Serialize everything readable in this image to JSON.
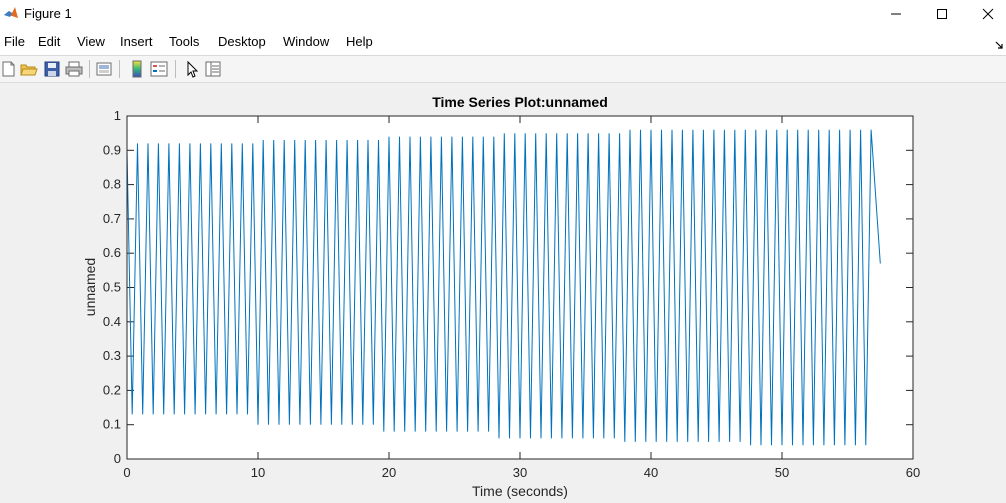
{
  "window": {
    "title": "Figure 1",
    "controls": [
      "minimize",
      "maximize",
      "close"
    ]
  },
  "menu": [
    "File",
    "Edit",
    "View",
    "Insert",
    "Tools",
    "Desktop",
    "Window",
    "Help"
  ],
  "toolbar": {
    "buttons": [
      {
        "icon": "new-figure-icon"
      },
      {
        "icon": "open-folder-icon"
      },
      {
        "icon": "save-icon"
      },
      {
        "icon": "print-icon"
      },
      {
        "icon": "link-plot-icon"
      },
      {
        "icon": "insert-colorbar-icon"
      },
      {
        "icon": "insert-legend-icon"
      },
      {
        "icon": "edit-plot-pointer-icon"
      },
      {
        "icon": "property-inspector-icon"
      }
    ]
  },
  "chart_data": {
    "type": "line",
    "title": "Time Series Plot:unnamed",
    "xlabel": "Time (seconds)",
    "ylabel": "unnamed",
    "xlim": [
      0,
      60
    ],
    "ylim": [
      0,
      1
    ],
    "xticks": [
      "0",
      "10",
      "20",
      "30",
      "40",
      "50",
      "60"
    ],
    "yticks": [
      "0",
      "0.1",
      "0.2",
      "0.3",
      "0.4",
      "0.5",
      "0.6",
      "0.7",
      "0.8",
      "0.9",
      "1"
    ],
    "grid": false,
    "line_color": "#0072BD",
    "series": [
      {
        "name": "",
        "period_seconds": 0.8,
        "x_start": 0,
        "x_end": 57.5,
        "peak_values": [
          0.92,
          0.93,
          0.94,
          0.95,
          0.96,
          0.96
        ],
        "trough_values": [
          0.13,
          0.1,
          0.08,
          0.06,
          0.05,
          0.04
        ],
        "start_value": 0.9,
        "end_value": 0.57
      }
    ]
  }
}
